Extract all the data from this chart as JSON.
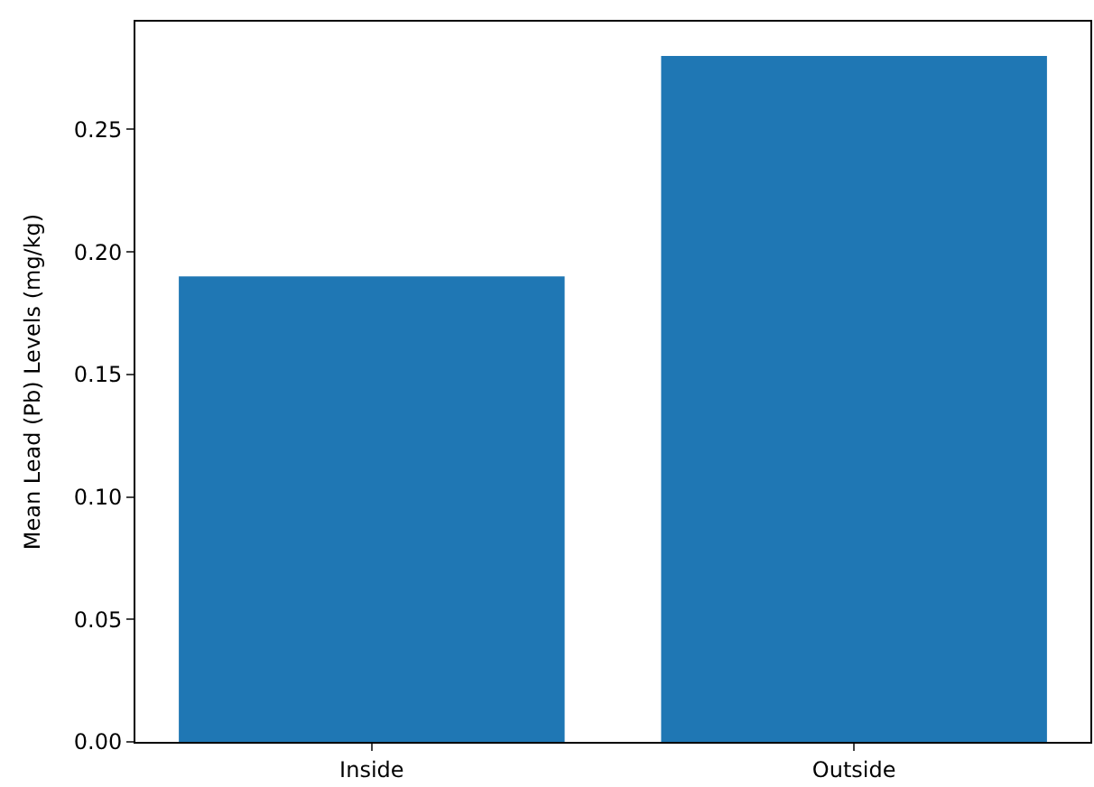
{
  "chart_data": {
    "type": "bar",
    "ylabel": "Mean Lead (Pb) Levels (mg/kg)",
    "categories": [
      "Inside",
      "Outside"
    ],
    "values": [
      0.19,
      0.28
    ],
    "color": "#1f77b4",
    "ylim": [
      0,
      0.294
    ],
    "yticks": [
      {
        "value": 0,
        "label": "0.00"
      },
      {
        "value": 0.05,
        "label": "0.05"
      },
      {
        "value": 0.1,
        "label": "0.10"
      },
      {
        "value": 0.15,
        "label": "0.15"
      },
      {
        "value": 0.2,
        "label": "0.20"
      },
      {
        "value": 0.25,
        "label": "0.25"
      }
    ]
  }
}
